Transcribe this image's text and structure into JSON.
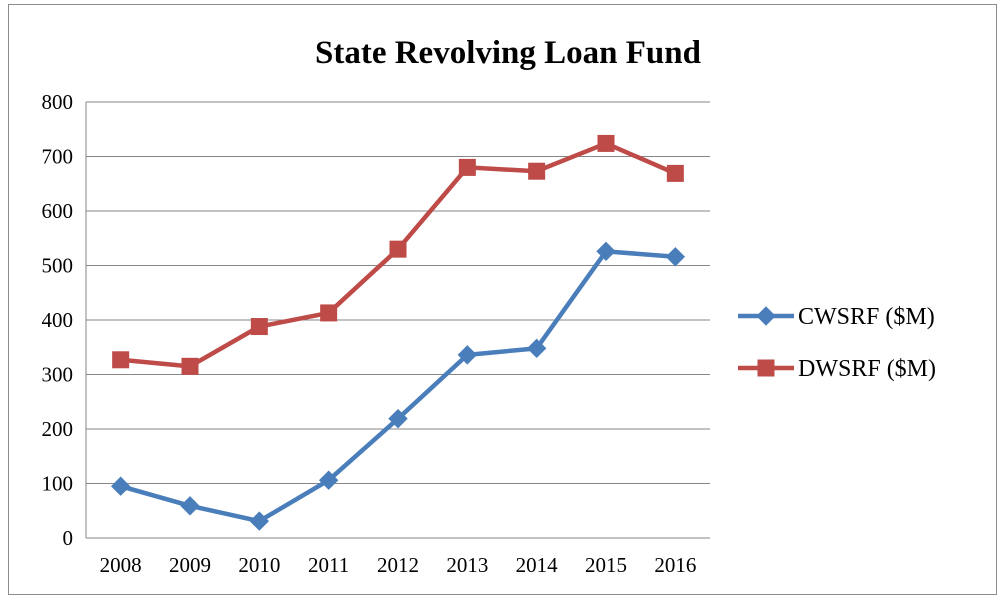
{
  "chart_data": {
    "type": "line",
    "title": "State Revolving Loan Fund",
    "xlabel": "",
    "ylabel": "",
    "categories": [
      "2008",
      "2009",
      "2010",
      "2011",
      "2012",
      "2013",
      "2014",
      "2015",
      "2016"
    ],
    "ylim": [
      0,
      800
    ],
    "yticks": [
      "0",
      "100",
      "200",
      "300",
      "400",
      "500",
      "600",
      "700",
      "800"
    ],
    "grid": true,
    "legend_position": "right",
    "series": [
      {
        "name": "CWSRF ($M)",
        "values": [
          95,
          59,
          31,
          106,
          219,
          336,
          348,
          526,
          516
        ],
        "color": "#4a7ebb",
        "marker": "diamond"
      },
      {
        "name": "DWSRF ($M)",
        "values": [
          327,
          315,
          388,
          413,
          530,
          680,
          673,
          724,
          669
        ],
        "color": "#be4b48",
        "marker": "square"
      }
    ]
  }
}
